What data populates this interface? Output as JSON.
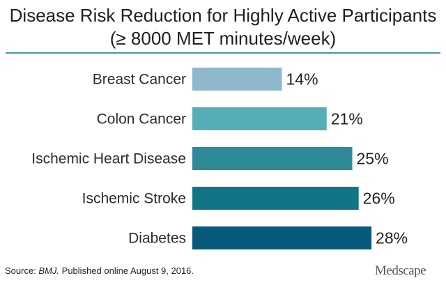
{
  "header": {
    "title_line1": "Disease Risk Reduction for Highly Active Participants",
    "title_line2": "(≥ 8000 MET minutes/week)"
  },
  "footer": {
    "source_prefix": "Source: ",
    "source_journal": "BMJ.",
    "source_suffix": " Published online August 9, 2016.",
    "logo_text": "Medscape"
  },
  "colors": {
    "rule": "#3f9aa6",
    "bars": [
      "#8fb8cc",
      "#55aeb6",
      "#2e8a97",
      "#127586",
      "#075a7a"
    ]
  },
  "chart_data": {
    "type": "bar",
    "orientation": "horizontal",
    "categories": [
      "Breast Cancer",
      "Colon Cancer",
      "Ischemic Heart Disease",
      "Ischemic Stroke",
      "Diabetes"
    ],
    "values": [
      14,
      21,
      25,
      26,
      28
    ],
    "value_labels": [
      "14%",
      "21%",
      "25%",
      "26%",
      "28%"
    ],
    "title": "Disease Risk Reduction for Highly Active Participants (≥ 8000 MET minutes/week)",
    "xlabel": "",
    "ylabel": "",
    "xlim": [
      0,
      28
    ],
    "grid": false,
    "legend": "none"
  }
}
